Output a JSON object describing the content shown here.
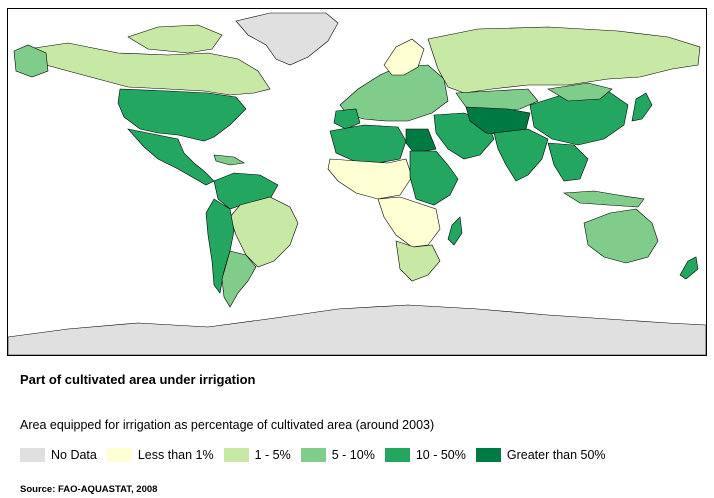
{
  "map": {
    "ocean_color": "#ffffff",
    "border_color": "#000000"
  },
  "title": "Part of cultivated area under irrigation",
  "subtitle": "Area equipped for irrigation as percentage of cultivated area (around 2003)",
  "legend": [
    {
      "label": "No Data",
      "color": "#e0e0e0"
    },
    {
      "label": "Less than 1%",
      "color": "#ffffd4"
    },
    {
      "label": "1 - 5%",
      "color": "#c7e9a5"
    },
    {
      "label": "5 - 10%",
      "color": "#80cc8a"
    },
    {
      "label": "10 - 50%",
      "color": "#22a660"
    },
    {
      "label": "Greater than 50%",
      "color": "#007a43"
    }
  ],
  "source": "Source: FAO-AQUASTAT, 2008"
}
